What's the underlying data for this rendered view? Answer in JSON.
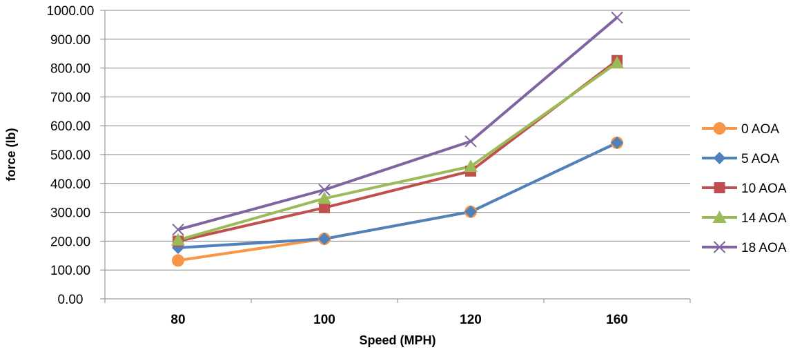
{
  "chart_data": {
    "type": "line",
    "title": "",
    "xlabel": "Speed (MPH)",
    "ylabel": "force (lb)",
    "categories": [
      "80",
      "100",
      "120",
      "160"
    ],
    "ylim": [
      0,
      1000
    ],
    "y_ticks": [
      "0.00",
      "100.00",
      "200.00",
      "300.00",
      "400.00",
      "500.00",
      "600.00",
      "700.00",
      "800.00",
      "900.00",
      "1000.00"
    ],
    "grid": "horizontal",
    "legend_position": "right",
    "series": [
      {
        "name": "0 AOA",
        "values": [
          133,
          208,
          302,
          541
        ],
        "color": "#F79646",
        "marker": "circle"
      },
      {
        "name": "5 AOA",
        "values": [
          177,
          208,
          302,
          541
        ],
        "color": "#4F81BD",
        "marker": "diamond"
      },
      {
        "name": "10 AOA",
        "values": [
          200,
          316,
          443,
          826
        ],
        "color": "#C0504D",
        "marker": "square"
      },
      {
        "name": "14 AOA",
        "values": [
          204,
          348,
          459,
          818
        ],
        "color": "#9BBB59",
        "marker": "triangle"
      },
      {
        "name": "18 AOA",
        "values": [
          240,
          378,
          546,
          975
        ],
        "color": "#8064A2",
        "marker": "x"
      }
    ]
  }
}
